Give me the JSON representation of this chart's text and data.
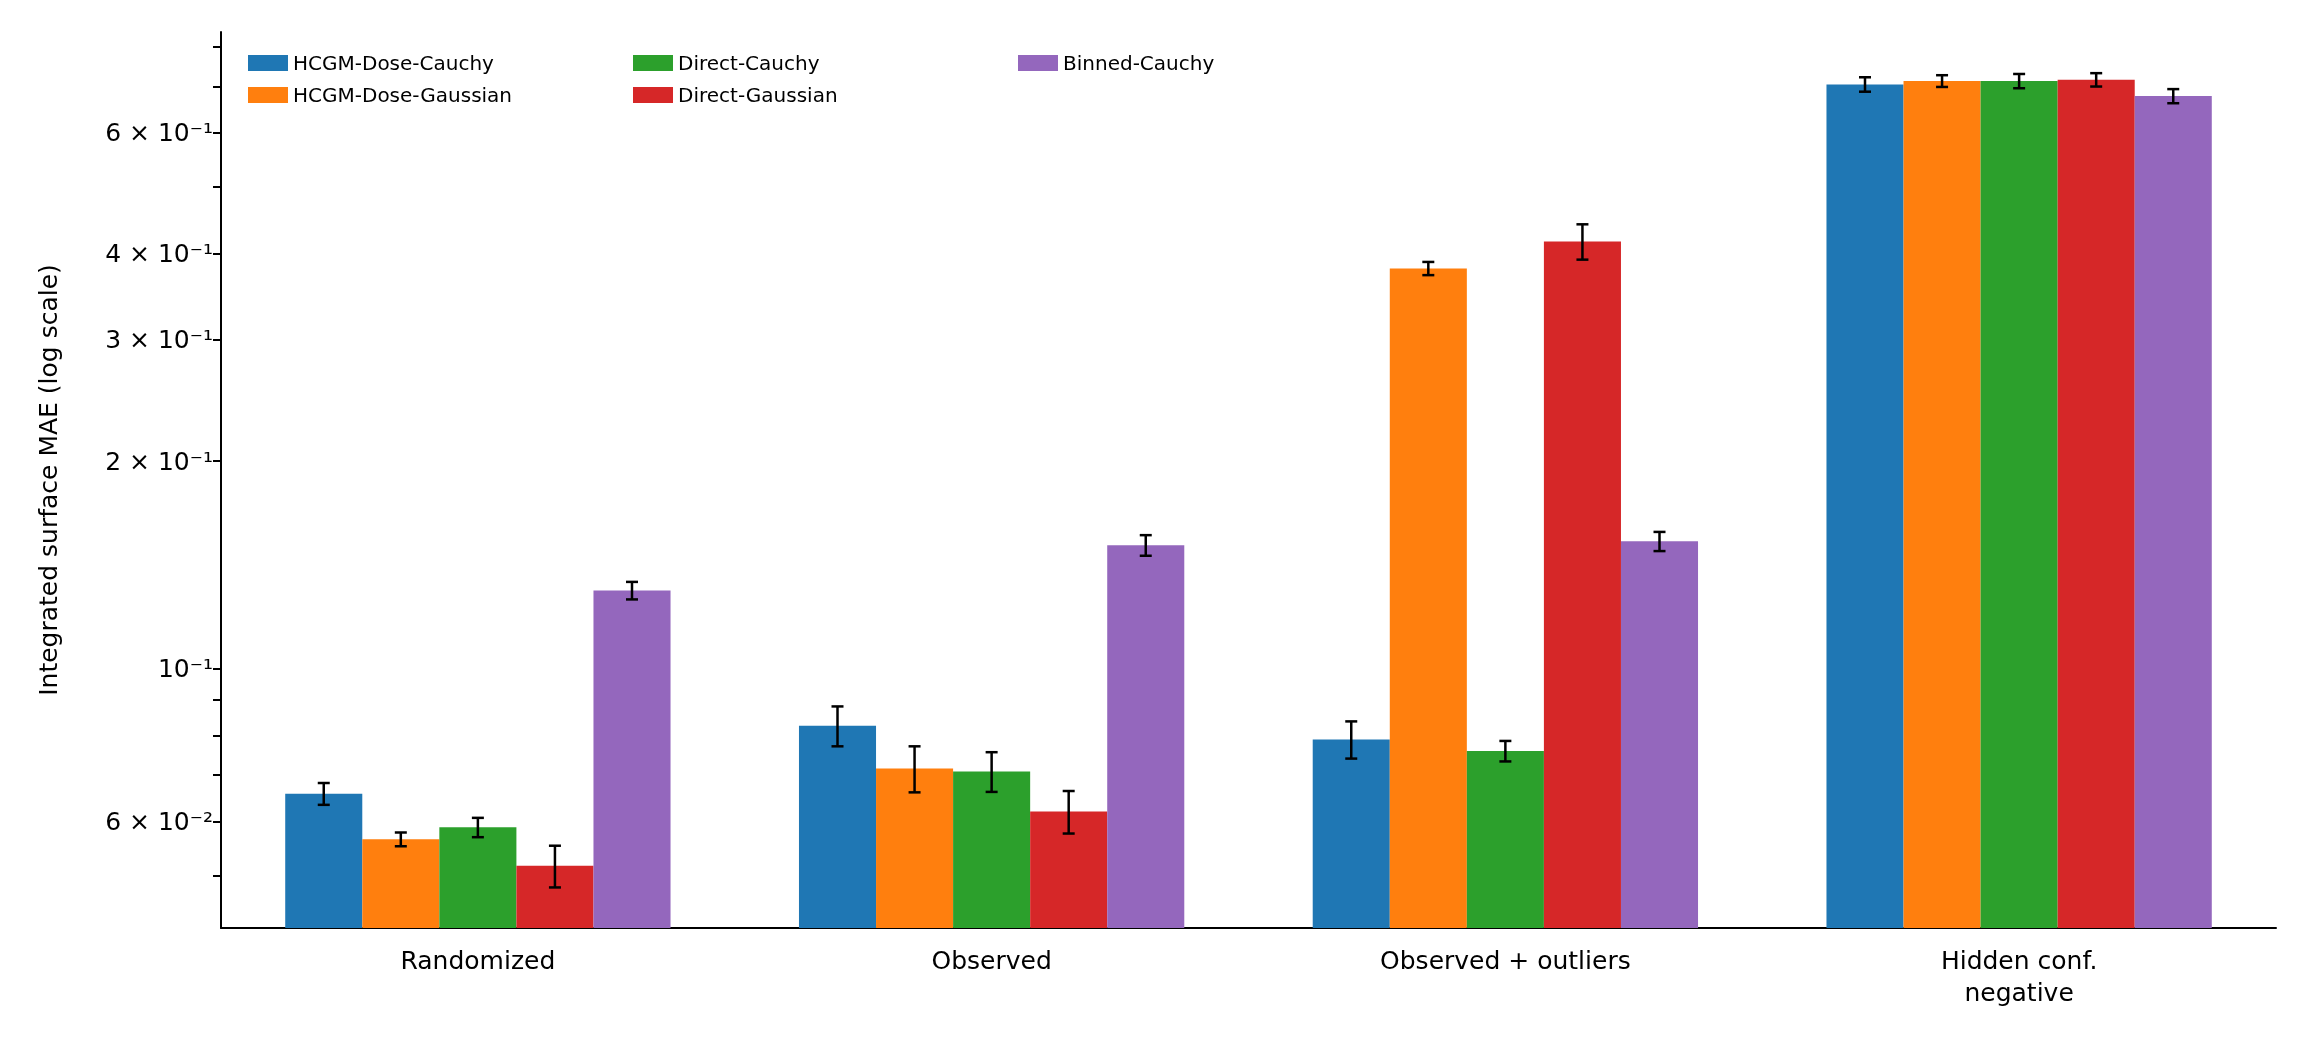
{
  "chart_data": {
    "type": "bar",
    "ylabel": "Integrated surface MAE (log scale)",
    "categories": [
      "Randomized",
      "Observed",
      "Observed + outliers",
      "Hidden conf.\nnegative"
    ],
    "series": [
      {
        "name": "HCGM-Dose-Cauchy",
        "color": "#1f77b4",
        "values": [
          0.0658,
          0.0826,
          0.0789,
          0.705
        ],
        "errors": [
          0.0024,
          0.0055,
          0.0049,
          0.017
        ]
      },
      {
        "name": "HCGM-Dose-Gaussian",
        "color": "#ff7f0e",
        "values": [
          0.0565,
          0.0716,
          0.381,
          0.713
        ],
        "errors": [
          0.0013,
          0.0055,
          0.0084,
          0.014
        ]
      },
      {
        "name": "Direct-Cauchy",
        "color": "#2ca02c",
        "values": [
          0.0588,
          0.0709,
          0.0759,
          0.713
        ],
        "errors": [
          0.0019,
          0.0047,
          0.0026,
          0.017
        ]
      },
      {
        "name": "Direct-Gaussian",
        "color": "#d62728",
        "values": [
          0.0517,
          0.062,
          0.417,
          0.716
        ],
        "errors": [
          0.0036,
          0.0044,
          0.0246,
          0.016
        ]
      },
      {
        "name": "Binned-Cauchy",
        "color": "#9467bd",
        "values": [
          0.1298,
          0.151,
          0.153,
          0.678
        ],
        "errors": [
          0.0038,
          0.0052,
          0.0049,
          0.016
        ]
      }
    ],
    "log": "y",
    "ylim": [
      0.042,
      0.84
    ],
    "yticks": [
      {
        "value": 0.05,
        "label": null
      },
      {
        "value": 0.06,
        "label": "6 × 10⁻²"
      },
      {
        "value": 0.07,
        "label": null
      },
      {
        "value": 0.08,
        "label": null
      },
      {
        "value": 0.09,
        "label": null
      },
      {
        "value": 0.1,
        "label": "10⁻¹"
      },
      {
        "value": 0.2,
        "label": "2 × 10⁻¹"
      },
      {
        "value": 0.3,
        "label": "3 × 10⁻¹"
      },
      {
        "value": 0.4,
        "label": "4 × 10⁻¹"
      },
      {
        "value": 0.5,
        "label": null
      },
      {
        "value": 0.6,
        "label": "6 × 10⁻¹"
      },
      {
        "value": 0.7,
        "label": null
      },
      {
        "value": 0.8,
        "label": null
      }
    ],
    "legend": "top left",
    "grid": false
  }
}
